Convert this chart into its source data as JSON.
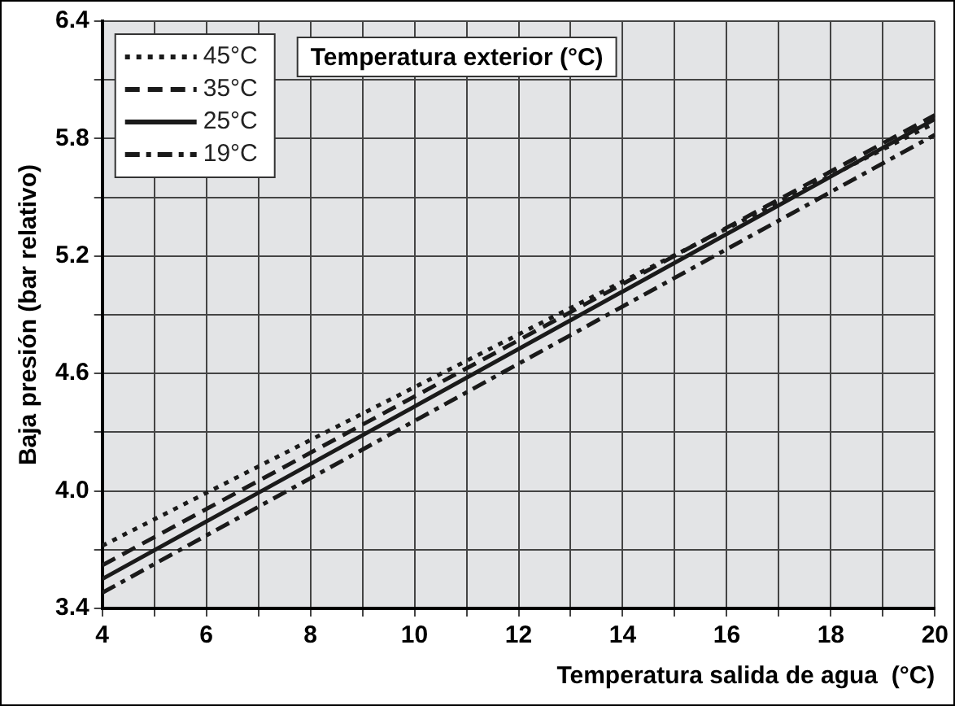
{
  "chart_data": {
    "type": "line",
    "xlabel": "Temperatura salida de agua  (°C)",
    "ylabel": "Baja presión (bar relativo)",
    "legend_title": "Temperatura exterior (°C)",
    "x": [
      4,
      20
    ],
    "series": [
      {
        "name": "45°C",
        "color": "#1a1a1a",
        "line_style": "dotted",
        "values": [
          3.72,
          5.88
        ]
      },
      {
        "name": "35°C",
        "color": "#1a1a1a",
        "line_style": "dashed",
        "values": [
          3.62,
          5.92
        ]
      },
      {
        "name": "25°C",
        "color": "#1a1a1a",
        "line_style": "solid",
        "values": [
          3.55,
          5.9
        ]
      },
      {
        "name": "19°C",
        "color": "#1a1a1a",
        "line_style": "dashdot",
        "values": [
          3.48,
          5.82
        ]
      }
    ],
    "xlim": [
      4,
      20
    ],
    "xticks": [
      4,
      {
        "value": 5,
        "label": null
      },
      6,
      {
        "value": 7,
        "label": null
      },
      8,
      {
        "value": 9,
        "label": null
      },
      10,
      {
        "value": 11,
        "label": null
      },
      12,
      {
        "value": 13,
        "label": null
      },
      14,
      {
        "value": 15,
        "label": null
      },
      16,
      {
        "value": 17,
        "label": null
      },
      18,
      {
        "value": 19,
        "label": null
      },
      20
    ],
    "ylim": [
      3.4,
      6.4
    ],
    "yticks": [
      {
        "value": 3.4,
        "label": "3.4"
      },
      {
        "value": 3.7,
        "label": null
      },
      {
        "value": 4.0,
        "label": "4.0"
      },
      {
        "value": 4.3,
        "label": null
      },
      {
        "value": 4.6,
        "label": "4.6"
      },
      {
        "value": 4.9,
        "label": null
      },
      {
        "value": 5.2,
        "label": "5.2"
      },
      {
        "value": 5.5,
        "label": null
      },
      {
        "value": 5.8,
        "label": "5.8"
      },
      {
        "value": 6.1,
        "label": null
      },
      {
        "value": 6.4,
        "label": "6.4"
      }
    ],
    "grid": true,
    "legend": "top left",
    "marker": "none"
  }
}
